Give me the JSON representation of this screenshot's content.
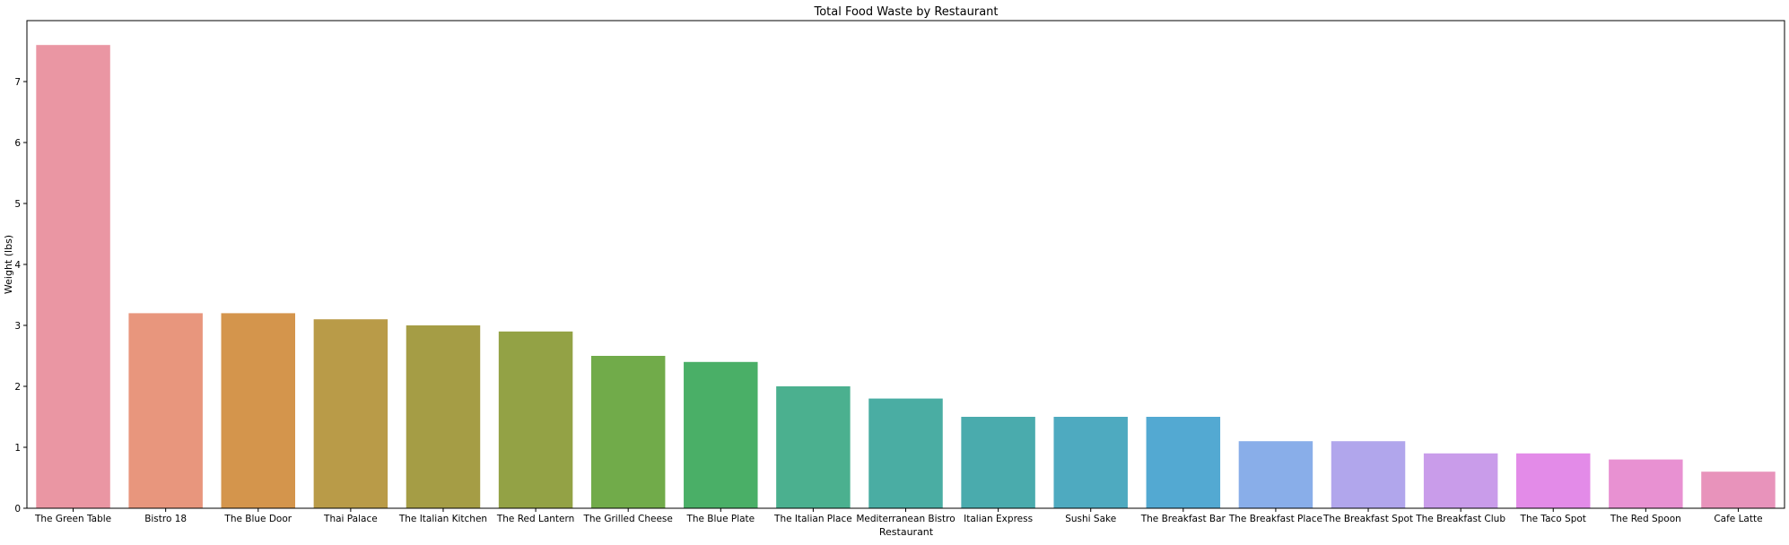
{
  "chart_data": {
    "type": "bar",
    "title": "Total Food Waste by Restaurant",
    "xlabel": "Restaurant",
    "ylabel": "Weight (lbs)",
    "ylim": [
      0,
      8.0
    ],
    "yticks": [
      0,
      1,
      2,
      3,
      4,
      5,
      6,
      7
    ],
    "grid": false,
    "categories": [
      "The Green Table",
      "Bistro 18",
      "The Blue Door",
      "Thai Palace",
      "The Italian Kitchen",
      "The Red Lantern",
      "The Grilled Cheese",
      "The Blue Plate",
      "The Italian Place",
      "Mediterranean Bistro",
      "Italian Express",
      "Sushi Sake",
      "The Breakfast Bar",
      "The Breakfast Place",
      "The Breakfast Spot",
      "The Breakfast Club",
      "The Taco Spot",
      "The Red Spoon",
      "Cafe Latte"
    ],
    "values": [
      7.6,
      3.2,
      3.2,
      3.1,
      3.0,
      2.9,
      2.5,
      2.4,
      2.0,
      1.8,
      1.5,
      1.5,
      1.5,
      1.1,
      1.1,
      0.9,
      0.9,
      0.8,
      0.6
    ],
    "colors": [
      "#ea96a3",
      "#e8967d",
      "#d4954c",
      "#b99b48",
      "#a59d45",
      "#93a245",
      "#71ab4a",
      "#4aaf67",
      "#4bb08f",
      "#4aada3",
      "#4aabad",
      "#4eaac0",
      "#53a9d2",
      "#89aee9",
      "#b1a6ec",
      "#c99cea",
      "#e38be8",
      "#e891d2",
      "#e893bb"
    ]
  }
}
